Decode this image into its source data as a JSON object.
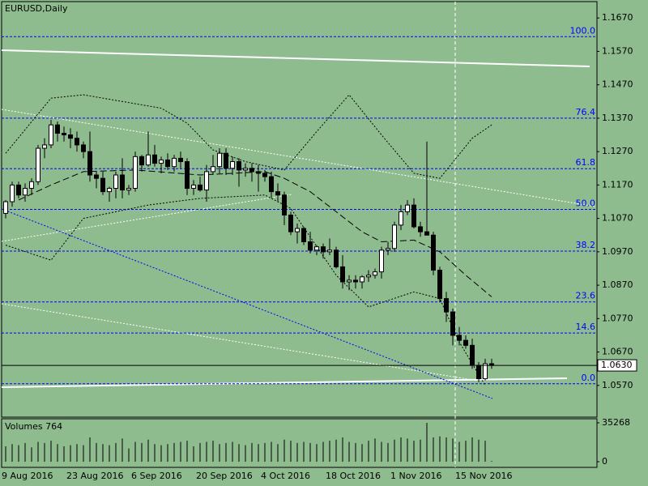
{
  "chart_data": [
    {
      "type": "candlestick",
      "title": "EURUSD,Daily",
      "categories": [
        "9 Aug 2016",
        null,
        null,
        null,
        null,
        null,
        null,
        null,
        null,
        null,
        "23 Aug 2016",
        null,
        null,
        null,
        null,
        null,
        null,
        null,
        null,
        null,
        "6 Sep 2016",
        null,
        null,
        null,
        null,
        null,
        null,
        null,
        null,
        null,
        "20 Sep 2016",
        null,
        null,
        null,
        null,
        null,
        null,
        null,
        null,
        null,
        "4 Oct 2016",
        null,
        null,
        null,
        null,
        null,
        null,
        null,
        null,
        null,
        "18 Oct 2016",
        null,
        null,
        null,
        null,
        null,
        null,
        null,
        null,
        null,
        "1 Nov 2016",
        null,
        null,
        null,
        null,
        null,
        null,
        null,
        null,
        null,
        "15 Nov 2016",
        null,
        null,
        null,
        null,
        null
      ],
      "open": [
        1.1085,
        1.112,
        1.117,
        1.114,
        1.116,
        1.118,
        1.128,
        1.129,
        1.135,
        1.1325,
        1.132,
        1.131,
        1.129,
        1.127,
        1.12,
        1.119,
        1.115,
        1.116,
        1.12,
        1.1155,
        1.116,
        1.1255,
        1.123,
        1.126,
        1.1235,
        1.1245,
        1.1225,
        1.125,
        1.124,
        1.116,
        1.117,
        1.1155,
        1.121,
        1.1225,
        1.1265,
        1.122,
        1.124,
        1.1215,
        1.122,
        1.121,
        1.1205,
        1.1195,
        1.115,
        1.114,
        1.108,
        1.103,
        1.104,
        1.1,
        1.0975,
        1.0985,
        1.097,
        1.0975,
        1.0925,
        1.088,
        1.0885,
        1.088,
        1.0895,
        1.09,
        1.091,
        1.0975,
        1.098,
        1.105,
        1.109,
        1.111,
        1.1045,
        1.103,
        1.102,
        1.0915,
        1.083,
        1.079,
        1.072,
        1.0705,
        1.069,
        1.063,
        1.059,
        1.0635
      ],
      "high": [
        1.1125,
        1.118,
        1.118,
        1.1175,
        1.119,
        1.129,
        1.131,
        1.1365,
        1.136,
        1.1345,
        1.134,
        1.133,
        1.13,
        1.133,
        1.121,
        1.121,
        1.1165,
        1.121,
        1.125,
        1.117,
        1.127,
        1.126,
        1.133,
        1.129,
        1.1255,
        1.1265,
        1.126,
        1.127,
        1.125,
        1.1185,
        1.1195,
        1.123,
        1.126,
        1.128,
        1.128,
        1.1255,
        1.125,
        1.1235,
        1.1235,
        1.123,
        1.1215,
        1.121,
        1.1175,
        1.115,
        1.109,
        1.1055,
        1.1045,
        1.103,
        1.099,
        1.0995,
        1.101,
        1.0985,
        1.096,
        1.09,
        1.09,
        1.09,
        1.0915,
        1.092,
        1.0985,
        1.1,
        1.106,
        1.111,
        1.1125,
        1.113,
        1.106,
        1.13,
        1.103,
        1.0925,
        1.085,
        1.08,
        1.0745,
        1.072,
        1.071,
        1.064,
        1.065,
        1.065
      ],
      "low": [
        1.107,
        1.1105,
        1.113,
        1.112,
        1.114,
        1.117,
        1.125,
        1.128,
        1.13,
        1.13,
        1.128,
        1.127,
        1.125,
        1.118,
        1.116,
        1.114,
        1.112,
        1.113,
        1.113,
        1.114,
        1.115,
        1.121,
        1.1225,
        1.1225,
        1.1205,
        1.1215,
        1.121,
        1.122,
        1.114,
        1.114,
        1.115,
        1.112,
        1.12,
        1.1205,
        1.12,
        1.12,
        1.1165,
        1.1195,
        1.118,
        1.115,
        1.118,
        1.113,
        1.112,
        1.105,
        1.102,
        1.0995,
        1.099,
        1.0965,
        1.096,
        1.095,
        1.096,
        1.092,
        1.086,
        1.0855,
        1.086,
        1.086,
        1.088,
        1.089,
        1.089,
        1.096,
        1.097,
        1.1035,
        1.108,
        1.104,
        1.1015,
        1.102,
        1.09,
        1.082,
        1.076,
        1.069,
        1.069,
        1.068,
        1.062,
        1.058,
        1.0585,
        1.062
      ],
      "close": [
        1.112,
        1.117,
        1.114,
        1.116,
        1.118,
        1.128,
        1.129,
        1.135,
        1.1325,
        1.132,
        1.131,
        1.129,
        1.127,
        1.12,
        1.119,
        1.115,
        1.116,
        1.12,
        1.1155,
        1.116,
        1.1255,
        1.123,
        1.126,
        1.1235,
        1.1245,
        1.1225,
        1.125,
        1.124,
        1.116,
        1.117,
        1.1155,
        1.121,
        1.1225,
        1.1265,
        1.122,
        1.124,
        1.1215,
        1.122,
        1.121,
        1.1205,
        1.1195,
        1.115,
        1.114,
        1.108,
        1.103,
        1.104,
        1.1,
        1.0975,
        1.0985,
        1.097,
        1.0975,
        1.0925,
        1.088,
        1.0885,
        1.088,
        1.0895,
        1.09,
        1.091,
        1.0975,
        1.098,
        1.105,
        1.109,
        1.111,
        1.1045,
        1.103,
        1.102,
        1.0915,
        1.083,
        1.079,
        1.072,
        1.0705,
        1.069,
        1.063,
        1.059,
        1.0635,
        1.063
      ],
      "up_color": "#ffffff",
      "down_color": "#000000",
      "ylim": [
        1.0475,
        1.1719
      ],
      "yticks": [
        {
          "value": 1.167,
          "label": "1.1670"
        },
        {
          "value": 1.157,
          "label": "1.1570"
        },
        {
          "value": 1.147,
          "label": "1.1470"
        },
        {
          "value": 1.137,
          "label": "1.1370"
        },
        {
          "value": 1.127,
          "label": "1.1270"
        },
        {
          "value": 1.117,
          "label": "1.1170"
        },
        {
          "value": 1.107,
          "label": "1.1070"
        },
        {
          "value": 1.097,
          "label": "1.0970"
        },
        {
          "value": 1.087,
          "label": "1.0870"
        },
        {
          "value": 1.077,
          "label": "1.0770"
        },
        {
          "value": 1.067,
          "label": "1.0670"
        },
        {
          "value": 1.057,
          "label": "1.0570"
        }
      ],
      "levels": [
        {
          "label": "100.0",
          "value": 1.1614
        },
        {
          "label": "76.4",
          "value": 1.137
        },
        {
          "label": "61.8",
          "value": 1.1219
        },
        {
          "label": "50.0",
          "value": 1.1097
        },
        {
          "label": "38.2",
          "value": 1.0972
        },
        {
          "label": "23.6",
          "value": 1.082
        },
        {
          "label": "14.6",
          "value": 1.0727
        },
        {
          "label": "0.0",
          "value": 1.0575
        }
      ],
      "level_color": "#0000ff",
      "last_price": {
        "value": 1.063,
        "label": "1.0630"
      },
      "overlays": [
        {
          "style": "dashed",
          "x": [
            2,
            7,
            12,
            20,
            30,
            40,
            43,
            47,
            51,
            55,
            58,
            63,
            67,
            71,
            75
          ],
          "values": [
            1.1125,
            1.117,
            1.121,
            1.1215,
            1.12,
            1.121,
            1.119,
            1.115,
            1.109,
            1.103,
            1.1,
            1.1005,
            1.097,
            1.09,
            1.0835
          ]
        },
        {
          "style": "dotted",
          "x": [
            0,
            7,
            12,
            24,
            28,
            32,
            37,
            43,
            48,
            53,
            58,
            63,
            67,
            72,
            75
          ],
          "values": [
            1.1265,
            1.143,
            1.144,
            1.14,
            1.1355,
            1.1275,
            1.124,
            1.1215,
            1.133,
            1.144,
            1.132,
            1.1205,
            1.119,
            1.131,
            1.135
          ]
        },
        {
          "style": "dotted",
          "x": [
            0,
            7,
            12,
            22,
            30,
            40,
            44,
            51,
            56,
            63,
            67,
            70,
            74
          ],
          "values": [
            1.099,
            1.0945,
            1.107,
            1.111,
            1.113,
            1.114,
            1.11,
            1.09,
            1.0805,
            1.085,
            1.083,
            1.07,
            1.057
          ]
        }
      ]
    },
    {
      "type": "volume",
      "title": "Volumes 764",
      "values": [
        14000,
        16000,
        15000,
        17000,
        13000,
        18000,
        17000,
        19000,
        16000,
        14000,
        15000,
        16000,
        15000,
        22000,
        17000,
        16000,
        15000,
        17000,
        21000,
        12000,
        18000,
        17000,
        20000,
        16000,
        15000,
        16000,
        17000,
        18000,
        19000,
        14000,
        17000,
        18000,
        19000,
        16000,
        17000,
        18000,
        16000,
        15000,
        17000,
        16000,
        17000,
        18000,
        16000,
        20000,
        19000,
        17000,
        18000,
        17000,
        16000,
        18000,
        19000,
        20000,
        22000,
        18000,
        17000,
        16000,
        19000,
        21000,
        18000,
        17000,
        20000,
        22000,
        21000,
        19000,
        20000,
        35268,
        22000,
        23000,
        22000,
        21000,
        18000,
        19000,
        22000,
        20000,
        19000,
        764
      ],
      "color": "#000000",
      "ylim": [
        0,
        35268
      ],
      "yticks": [
        0,
        35268
      ]
    }
  ]
}
